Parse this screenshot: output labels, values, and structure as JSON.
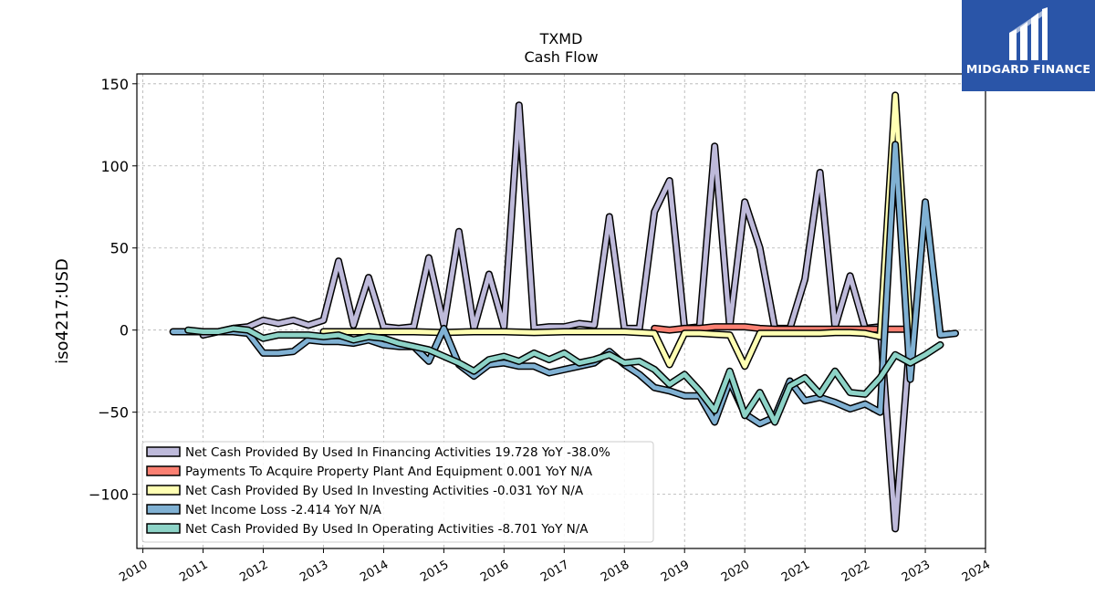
{
  "brand": {
    "name": "MIDGARD FINANCE",
    "color": "#2a55a8",
    "icon": "midgard-logo-icon"
  },
  "chart_data": {
    "type": "line",
    "title": "TXMD",
    "subtitle": "Cash Flow",
    "ylabel": "iso4217:USD",
    "xlabel": "",
    "xlim": [
      2009.9,
      2024.0
    ],
    "ylim": [
      -133,
      156
    ],
    "yticks": [
      150,
      100,
      50,
      0,
      -50,
      -100
    ],
    "ytick_labels": [
      "150",
      "100",
      "50",
      "0",
      "−50",
      "−100"
    ],
    "xticks": [
      2010,
      2011,
      2012,
      2013,
      2014,
      2015,
      2016,
      2017,
      2018,
      2019,
      2020,
      2021,
      2022,
      2023,
      2024
    ],
    "xtick_labels": [
      "2010",
      "2011",
      "2012",
      "2013",
      "2014",
      "2015",
      "2016",
      "2017",
      "2018",
      "2019",
      "2020",
      "2021",
      "2022",
      "2023",
      "2024"
    ],
    "grid": true,
    "legend_position": "lower-left",
    "series": [
      {
        "name": "Net Cash Provided By Used In Financing Activities",
        "legend_label": "Net Cash Provided By Used In Financing Activities  19.728 YoY -38.0%",
        "color": "#bebada",
        "points": [
          [
            2011.0,
            -3
          ],
          [
            2011.25,
            -1
          ],
          [
            2011.5,
            1
          ],
          [
            2011.75,
            2
          ],
          [
            2012.0,
            6
          ],
          [
            2012.25,
            4
          ],
          [
            2012.5,
            6
          ],
          [
            2012.75,
            3
          ],
          [
            2013.0,
            6
          ],
          [
            2013.25,
            42
          ],
          [
            2013.5,
            3
          ],
          [
            2013.75,
            32
          ],
          [
            2014.0,
            2
          ],
          [
            2014.25,
            1
          ],
          [
            2014.5,
            2
          ],
          [
            2014.75,
            44
          ],
          [
            2015.0,
            3
          ],
          [
            2015.25,
            60
          ],
          [
            2015.5,
            1
          ],
          [
            2015.75,
            34
          ],
          [
            2016.0,
            2
          ],
          [
            2016.25,
            137
          ],
          [
            2016.5,
            1
          ],
          [
            2016.75,
            2
          ],
          [
            2017.0,
            2
          ],
          [
            2017.25,
            4
          ],
          [
            2017.5,
            3
          ],
          [
            2017.75,
            69
          ],
          [
            2018.0,
            1
          ],
          [
            2018.25,
            1
          ],
          [
            2018.5,
            72
          ],
          [
            2018.75,
            91
          ],
          [
            2019.0,
            1
          ],
          [
            2019.25,
            2
          ],
          [
            2019.5,
            112
          ],
          [
            2019.75,
            2
          ],
          [
            2020.0,
            78
          ],
          [
            2020.25,
            50
          ],
          [
            2020.5,
            1
          ],
          [
            2020.75,
            1
          ],
          [
            2021.0,
            31
          ],
          [
            2021.25,
            96
          ],
          [
            2021.5,
            2
          ],
          [
            2021.75,
            33
          ],
          [
            2022.0,
            1
          ],
          [
            2022.25,
            2
          ],
          [
            2022.5,
            -121
          ],
          [
            2022.75,
            -2
          ]
        ]
      },
      {
        "name": "Payments To Acquire Property Plant And Equipment",
        "legend_label": "Payments To Acquire Property Plant And Equipment  0.001 YoY N/A",
        "color": "#fb8072",
        "points": [
          [
            2018.5,
            1
          ],
          [
            2018.75,
            0
          ],
          [
            2019.0,
            1
          ],
          [
            2019.25,
            1
          ],
          [
            2019.5,
            2
          ],
          [
            2019.75,
            2
          ],
          [
            2020.0,
            2
          ],
          [
            2020.25,
            1
          ],
          [
            2020.5,
            0.5
          ],
          [
            2020.75,
            0.5
          ],
          [
            2021.0,
            0.5
          ],
          [
            2021.25,
            0.5
          ],
          [
            2021.5,
            0.5
          ],
          [
            2021.75,
            0.5
          ],
          [
            2022.0,
            0.5
          ],
          [
            2022.25,
            0.5
          ],
          [
            2022.5,
            0.5
          ],
          [
            2022.75,
            0.5
          ]
        ]
      },
      {
        "name": "Net Cash Provided By Used In Investing Activities",
        "legend_label": "Net Cash Provided By Used In Investing Activities  -0.031 YoY N/A",
        "color": "#ffffb3",
        "points": [
          [
            2013.0,
            -1
          ],
          [
            2013.5,
            -1
          ],
          [
            2014.0,
            -1
          ],
          [
            2014.5,
            -1
          ],
          [
            2015.0,
            -1.5
          ],
          [
            2015.5,
            -1
          ],
          [
            2016.0,
            -1
          ],
          [
            2016.5,
            -1.5
          ],
          [
            2017.0,
            -1
          ],
          [
            2017.5,
            -1
          ],
          [
            2018.0,
            -1
          ],
          [
            2018.5,
            -2
          ],
          [
            2018.75,
            -21
          ],
          [
            2019.0,
            -2
          ],
          [
            2019.25,
            -2
          ],
          [
            2019.5,
            -2.5
          ],
          [
            2019.75,
            -3
          ],
          [
            2020.0,
            -22
          ],
          [
            2020.25,
            -2
          ],
          [
            2020.5,
            -2
          ],
          [
            2020.75,
            -2
          ],
          [
            2021.0,
            -2
          ],
          [
            2021.25,
            -2
          ],
          [
            2021.5,
            -1.5
          ],
          [
            2021.75,
            -1.5
          ],
          [
            2022.0,
            -2
          ],
          [
            2022.25,
            -4
          ],
          [
            2022.5,
            143
          ],
          [
            2022.75,
            -1
          ]
        ]
      },
      {
        "name": "Net Income Loss",
        "legend_label": "Net Income Loss  -2.414 YoY N/A",
        "color": "#80b1d3",
        "points": [
          [
            2010.5,
            -1
          ],
          [
            2010.75,
            -1
          ],
          [
            2011.0,
            -1
          ],
          [
            2011.25,
            -1
          ],
          [
            2011.5,
            -1
          ],
          [
            2011.75,
            -2
          ],
          [
            2012.0,
            -14
          ],
          [
            2012.25,
            -14
          ],
          [
            2012.5,
            -13
          ],
          [
            2012.75,
            -6
          ],
          [
            2013.0,
            -7
          ],
          [
            2013.25,
            -7
          ],
          [
            2013.5,
            -8
          ],
          [
            2013.75,
            -6
          ],
          [
            2014.0,
            -9
          ],
          [
            2014.25,
            -10
          ],
          [
            2014.5,
            -10
          ],
          [
            2014.75,
            -19
          ],
          [
            2015.0,
            1
          ],
          [
            2015.25,
            -21
          ],
          [
            2015.5,
            -28
          ],
          [
            2015.75,
            -21
          ],
          [
            2016.0,
            -20
          ],
          [
            2016.25,
            -22
          ],
          [
            2016.5,
            -22
          ],
          [
            2016.75,
            -26
          ],
          [
            2017.0,
            -24
          ],
          [
            2017.25,
            -22
          ],
          [
            2017.5,
            -20
          ],
          [
            2017.75,
            -13
          ],
          [
            2018.0,
            -21
          ],
          [
            2018.25,
            -27
          ],
          [
            2018.5,
            -35
          ],
          [
            2018.75,
            -37
          ],
          [
            2019.0,
            -40
          ],
          [
            2019.25,
            -40
          ],
          [
            2019.5,
            -56
          ],
          [
            2019.75,
            -31
          ],
          [
            2020.0,
            -51
          ],
          [
            2020.25,
            -57
          ],
          [
            2020.5,
            -53
          ],
          [
            2020.75,
            -31
          ],
          [
            2021.0,
            -43
          ],
          [
            2021.25,
            -41
          ],
          [
            2021.5,
            -44
          ],
          [
            2021.75,
            -48
          ],
          [
            2022.0,
            -45
          ],
          [
            2022.25,
            -50
          ],
          [
            2022.5,
            113
          ],
          [
            2022.75,
            -30
          ],
          [
            2023.0,
            78
          ],
          [
            2023.25,
            -3
          ],
          [
            2023.5,
            -2
          ]
        ]
      },
      {
        "name": "Net Cash Provided By Used In Operating Activities",
        "legend_label": "Net Cash Provided By Used In Operating Activities  -8.701 YoY N/A",
        "color": "#8dd3c7",
        "points": [
          [
            2010.75,
            0
          ],
          [
            2011.0,
            -1
          ],
          [
            2011.25,
            -1
          ],
          [
            2011.5,
            1
          ],
          [
            2011.75,
            0
          ],
          [
            2012.0,
            -5
          ],
          [
            2012.25,
            -3
          ],
          [
            2012.5,
            -3
          ],
          [
            2012.75,
            -3
          ],
          [
            2013.0,
            -4
          ],
          [
            2013.25,
            -3
          ],
          [
            2013.5,
            -6
          ],
          [
            2013.75,
            -4
          ],
          [
            2014.0,
            -5
          ],
          [
            2014.25,
            -8
          ],
          [
            2014.5,
            -10
          ],
          [
            2014.75,
            -12
          ],
          [
            2015.0,
            -16
          ],
          [
            2015.25,
            -20
          ],
          [
            2015.5,
            -25
          ],
          [
            2015.75,
            -18
          ],
          [
            2016.0,
            -16
          ],
          [
            2016.25,
            -19
          ],
          [
            2016.5,
            -14
          ],
          [
            2016.75,
            -18
          ],
          [
            2017.0,
            -14
          ],
          [
            2017.25,
            -20
          ],
          [
            2017.5,
            -18
          ],
          [
            2017.75,
            -15
          ],
          [
            2018.0,
            -20
          ],
          [
            2018.25,
            -19
          ],
          [
            2018.5,
            -24
          ],
          [
            2018.75,
            -33
          ],
          [
            2019.0,
            -27
          ],
          [
            2019.25,
            -37
          ],
          [
            2019.5,
            -49
          ],
          [
            2019.75,
            -25
          ],
          [
            2020.0,
            -52
          ],
          [
            2020.25,
            -38
          ],
          [
            2020.5,
            -56
          ],
          [
            2020.75,
            -34
          ],
          [
            2021.0,
            -29
          ],
          [
            2021.25,
            -39
          ],
          [
            2021.5,
            -25
          ],
          [
            2021.75,
            -38
          ],
          [
            2022.0,
            -39
          ],
          [
            2022.25,
            -29
          ],
          [
            2022.5,
            -15
          ],
          [
            2022.75,
            -20
          ],
          [
            2023.0,
            -15
          ],
          [
            2023.25,
            -9
          ]
        ]
      }
    ]
  }
}
